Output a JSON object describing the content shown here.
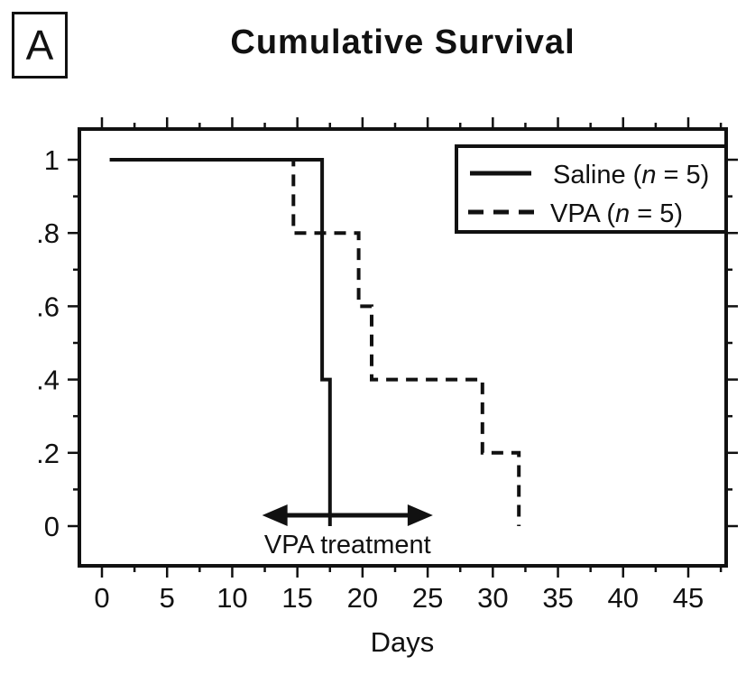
{
  "panel_label": "A",
  "colors": {
    "ink": "#111111",
    "background": "#ffffff"
  },
  "chart_data": {
    "type": "line",
    "subtype": "kaplan-meier-step",
    "title": "Cumulative Survival",
    "xlabel": "Days",
    "ylabel": "",
    "xlim": [
      0,
      45
    ],
    "ylim": [
      0,
      1
    ],
    "grid": false,
    "legend_position": "top-right",
    "x_ticks": [
      0,
      5,
      10,
      15,
      20,
      25,
      30,
      35,
      40,
      45
    ],
    "x_tick_labels": [
      "0",
      "5",
      "10",
      "15",
      "20",
      "25",
      "30",
      "35",
      "40",
      "45"
    ],
    "y_ticks": [
      1,
      0.8,
      0.6,
      0.4,
      0.2,
      0
    ],
    "y_tick_labels": [
      "1",
      ".8",
      ".6",
      ".4",
      ".2",
      "0"
    ],
    "series": [
      {
        "name": "Saline (n = 5)",
        "style": "solid",
        "points": [
          [
            0.6,
            1
          ],
          [
            16.9,
            1
          ],
          [
            16.9,
            0.4
          ],
          [
            17.5,
            0.4
          ],
          [
            17.5,
            0
          ]
        ]
      },
      {
        "name": "VPA (n = 5)",
        "style": "dashed",
        "points": [
          [
            0.6,
            1
          ],
          [
            14.7,
            1
          ],
          [
            14.7,
            0.8
          ],
          [
            19.7,
            0.8
          ],
          [
            19.7,
            0.6
          ],
          [
            20.7,
            0.6
          ],
          [
            20.7,
            0.4
          ],
          [
            29.2,
            0.4
          ],
          [
            29.2,
            0.2
          ],
          [
            32,
            0.2
          ],
          [
            32,
            0
          ]
        ]
      }
    ],
    "annotation": {
      "text": "VPA treatment",
      "arrow_start_day": 12.3,
      "arrow_end_day": 25.4
    }
  },
  "legend": {
    "items": [
      {
        "pre": "Saline (",
        "var": "n",
        "post": " = 5)",
        "line": "solid"
      },
      {
        "pre": "VPA (",
        "var": "n",
        "post": " = 5)",
        "line": "dashed"
      }
    ]
  }
}
